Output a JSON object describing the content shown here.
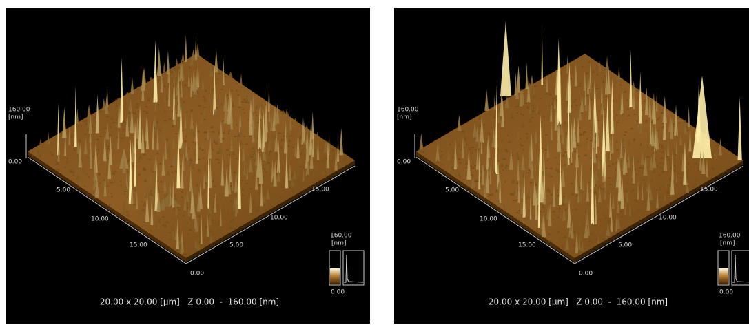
{
  "panels": [
    {
      "z_axis": {
        "max": "160.00",
        "unit": "[nm]",
        "min": "0.00"
      },
      "x_axis": [
        "5.00",
        "10.00",
        "15.00"
      ],
      "y_axis": [
        "15.00",
        "10.00",
        "5.00",
        "0.00"
      ],
      "colorbar": {
        "max": "160.00",
        "unit": "[nm]",
        "min": "0.00"
      },
      "caption": "20.00 x 20.00 [µm]   Z 0.00  -  160.00 [nm]"
    },
    {
      "z_axis": {
        "max": "160.00",
        "unit": "[nm]",
        "min": "0.00"
      },
      "x_axis": [
        "5.00",
        "10.00",
        "15.00"
      ],
      "y_axis": [
        "15.00",
        "10.00",
        "5.00",
        "0.00"
      ],
      "colorbar": {
        "max": "160.00",
        "unit": "[nm]",
        "min": "0.00"
      },
      "caption": "20.00 x 20.00 [µm]   Z 0.00  -  160.00 [nm]"
    }
  ]
}
